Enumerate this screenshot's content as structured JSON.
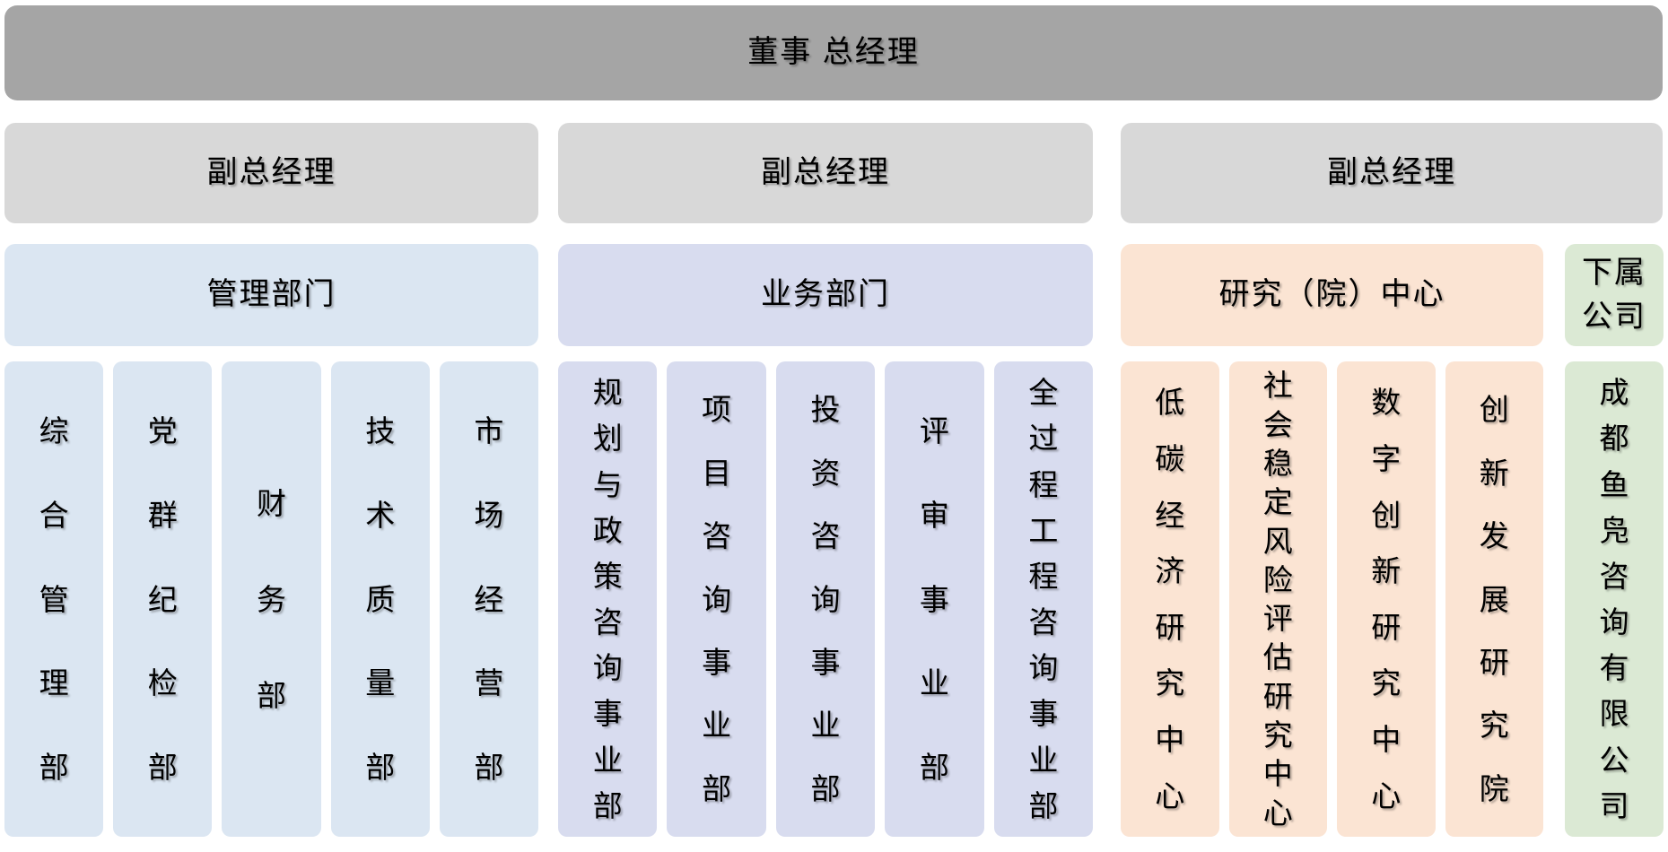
{
  "org": {
    "top_label": "董事 总经理",
    "deputies": [
      {
        "label": "副总经理"
      },
      {
        "label": "副总经理"
      },
      {
        "label": "副总经理"
      }
    ],
    "groups": [
      {
        "header": "管理部门",
        "departments": [
          "综合管理部",
          "党群纪检部",
          "财务部",
          "技术质量部",
          "市场经营部"
        ]
      },
      {
        "header": "业务部门",
        "departments": [
          "规划与政策咨询事业部",
          "项目咨询事业部",
          "投资咨询事业部",
          "评审事业部",
          "全过程工程咨询事业部"
        ]
      },
      {
        "header": "研究（院）中心",
        "departments": [
          "低碳经济研究中心",
          "社会稳定风险评估研究中心",
          "数字创新研究中心",
          "创新发展研究院"
        ]
      },
      {
        "header": "下属公司",
        "departments": [
          "成都鱼凫咨询有限公司"
        ]
      }
    ],
    "colors": {
      "top-bar": "#a5a5a5",
      "deputy": "#d8d8d8",
      "management": "#dbe6f2",
      "business": "#d8dcef",
      "research": "#fbe4d3",
      "subsidiary": "#dbe9d4",
      "text": "#000000"
    }
  }
}
